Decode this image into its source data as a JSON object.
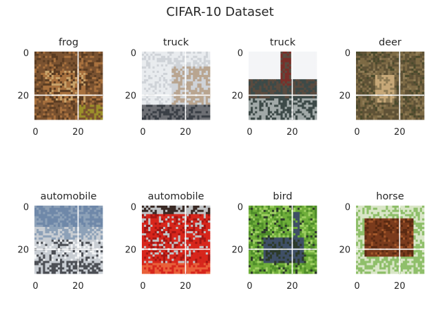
{
  "chart_data": {
    "type": "image-grid",
    "title": "CIFAR-10 Dataset",
    "rows": 2,
    "cols": 4,
    "image_size": 32,
    "xticks": [
      0,
      20
    ],
    "yticks": [
      0,
      20
    ],
    "grid": true,
    "panels": [
      {
        "label": "frog",
        "scene": "frog",
        "colors": [
          "#7a5230",
          "#a8713e",
          "#5a3c22",
          "#c9a36a",
          "#9b8f2a"
        ]
      },
      {
        "label": "truck",
        "scene": "truck_white",
        "colors": [
          "#cfd3d8",
          "#e9ecef",
          "#6d6f74",
          "#b9a590",
          "#3a3f46"
        ]
      },
      {
        "label": "truck",
        "scene": "truck_dump",
        "colors": [
          "#f4f5f7",
          "#5a4b3f",
          "#7a2f29",
          "#3d4a48",
          "#a1a9a8"
        ]
      },
      {
        "label": "deer",
        "scene": "deer",
        "colors": [
          "#5f5236",
          "#7d6a45",
          "#c7a878",
          "#4a4a2c",
          "#8e7b55"
        ]
      },
      {
        "label": "automobile",
        "scene": "car_silver",
        "colors": [
          "#6f88a9",
          "#8da1b8",
          "#c8cdd3",
          "#4c4f55",
          "#f0f2f4"
        ]
      },
      {
        "label": "automobile",
        "scene": "car_red",
        "colors": [
          "#d7261c",
          "#a31612",
          "#e9603a",
          "#c0c3c5",
          "#3a2a25"
        ]
      },
      {
        "label": "bird",
        "scene": "bird",
        "colors": [
          "#6fae3a",
          "#4f8d2a",
          "#3f4f66",
          "#9fcf63",
          "#2c3a2a"
        ]
      },
      {
        "label": "horse",
        "scene": "horse",
        "colors": [
          "#7a3b1c",
          "#5a2a12",
          "#8fbf6a",
          "#d9e6c7",
          "#a4582b"
        ]
      }
    ]
  }
}
